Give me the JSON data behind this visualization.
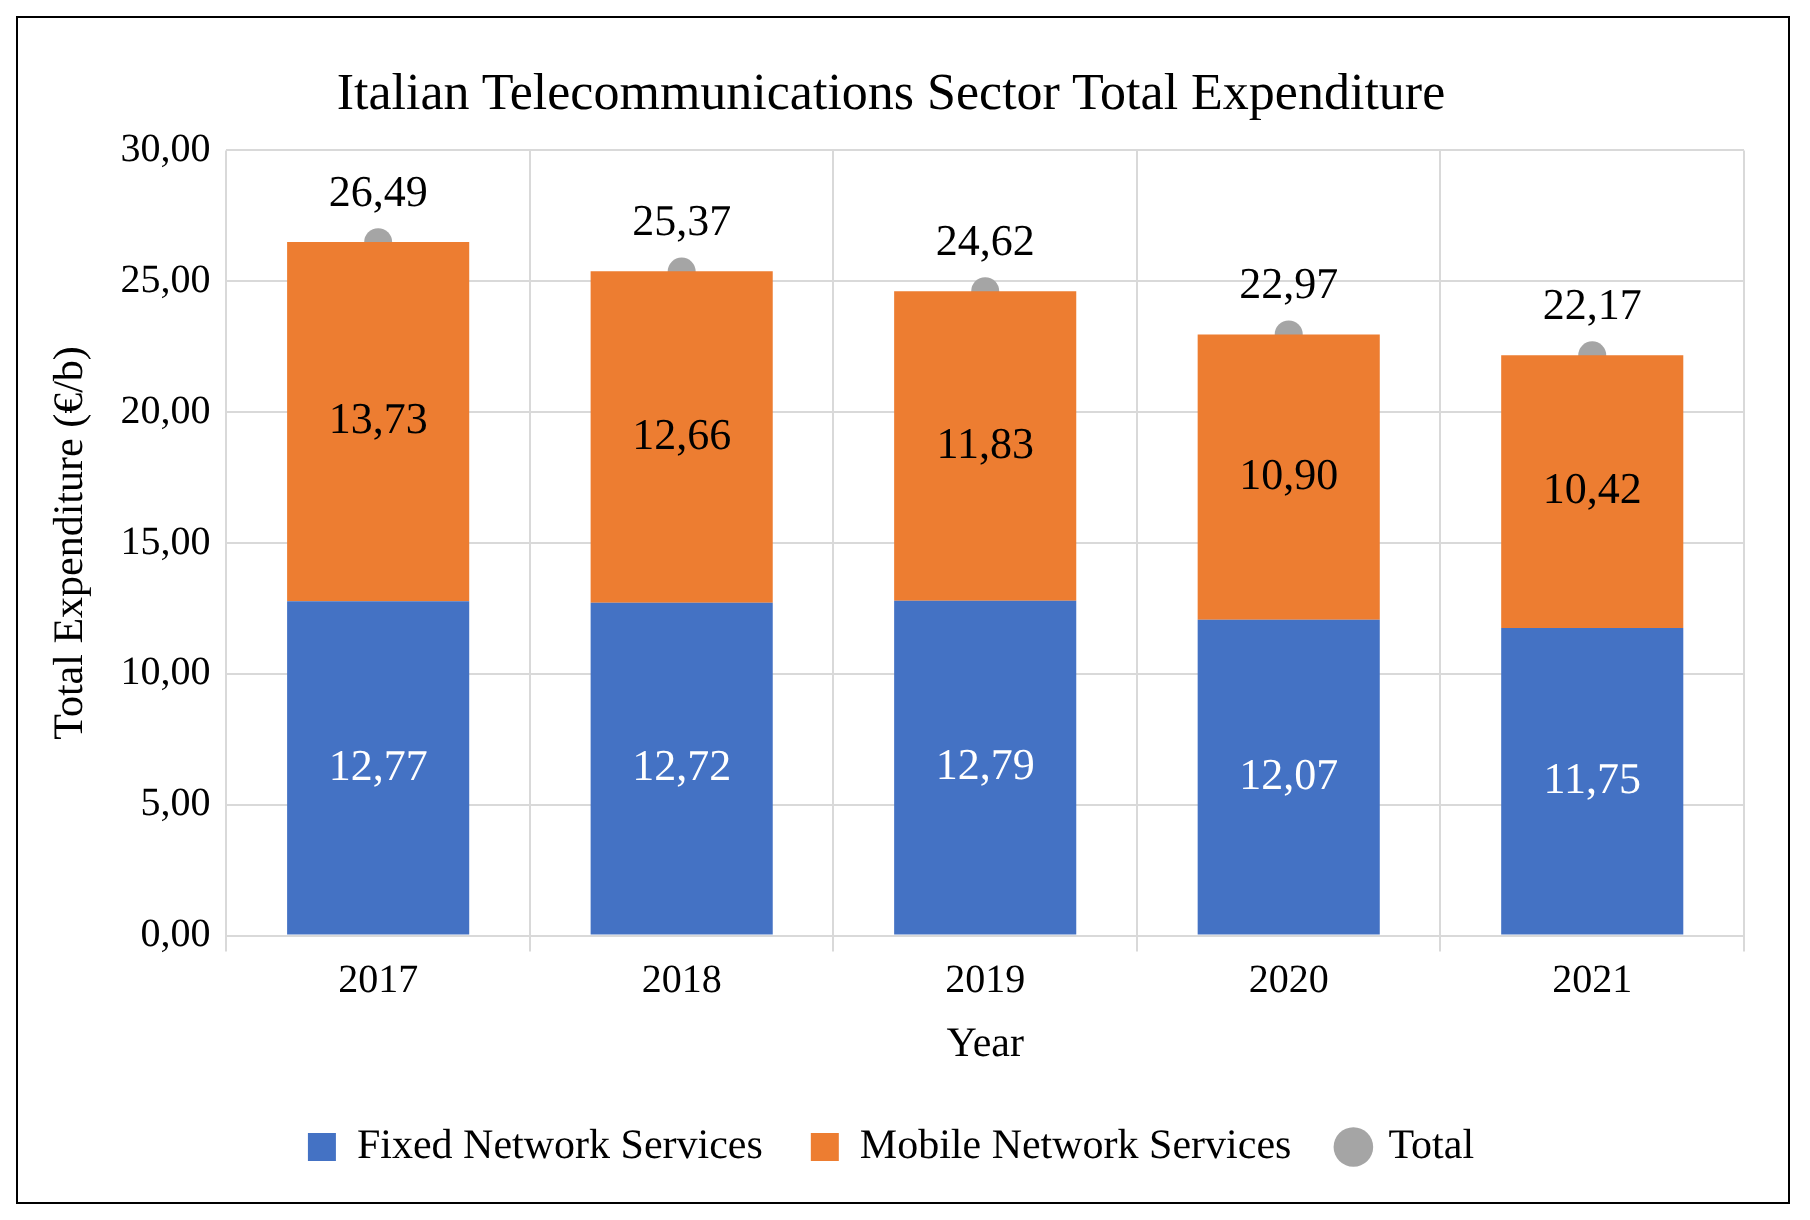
{
  "chart_data": {
    "type": "bar",
    "title": "Italian Telecommunications Sector Total Expenditure",
    "xlabel": "Year",
    "ylabel": "Total Expenditure (€/b)",
    "categories": [
      "2017",
      "2018",
      "2019",
      "2020",
      "2021"
    ],
    "stacked": true,
    "series": [
      {
        "name": "Fixed Network Services",
        "color": "#4472c4",
        "values": [
          12.77,
          12.72,
          12.79,
          12.07,
          11.75
        ],
        "value_labels": [
          "12,77",
          "12,72",
          "12,79",
          "12,07",
          "11,75"
        ]
      },
      {
        "name": "Mobile Network Services",
        "color": "#ed7d31",
        "values": [
          13.73,
          12.66,
          11.83,
          10.9,
          10.42
        ],
        "value_labels": [
          "13,73",
          "12,66",
          "11,83",
          "10,90",
          "10,42"
        ]
      },
      {
        "name": "Total",
        "type": "scatter",
        "color": "#a5a5a5",
        "values": [
          26.49,
          25.37,
          24.62,
          22.97,
          22.17
        ],
        "value_labels": [
          "26,49",
          "25,37",
          "24,62",
          "22,97",
          "22,17"
        ]
      }
    ],
    "ylim": [
      0,
      30
    ],
    "yticks": [
      {
        "value": 0,
        "label": "0,00"
      },
      {
        "value": 5,
        "label": "5,00"
      },
      {
        "value": 10,
        "label": "10,00"
      },
      {
        "value": 15,
        "label": "15,00"
      },
      {
        "value": 20,
        "label": "20,00"
      },
      {
        "value": 25,
        "label": "25,00"
      },
      {
        "value": 30,
        "label": "30,00"
      }
    ],
    "grid": true,
    "legend": "bottom",
    "marker": "circle"
  }
}
